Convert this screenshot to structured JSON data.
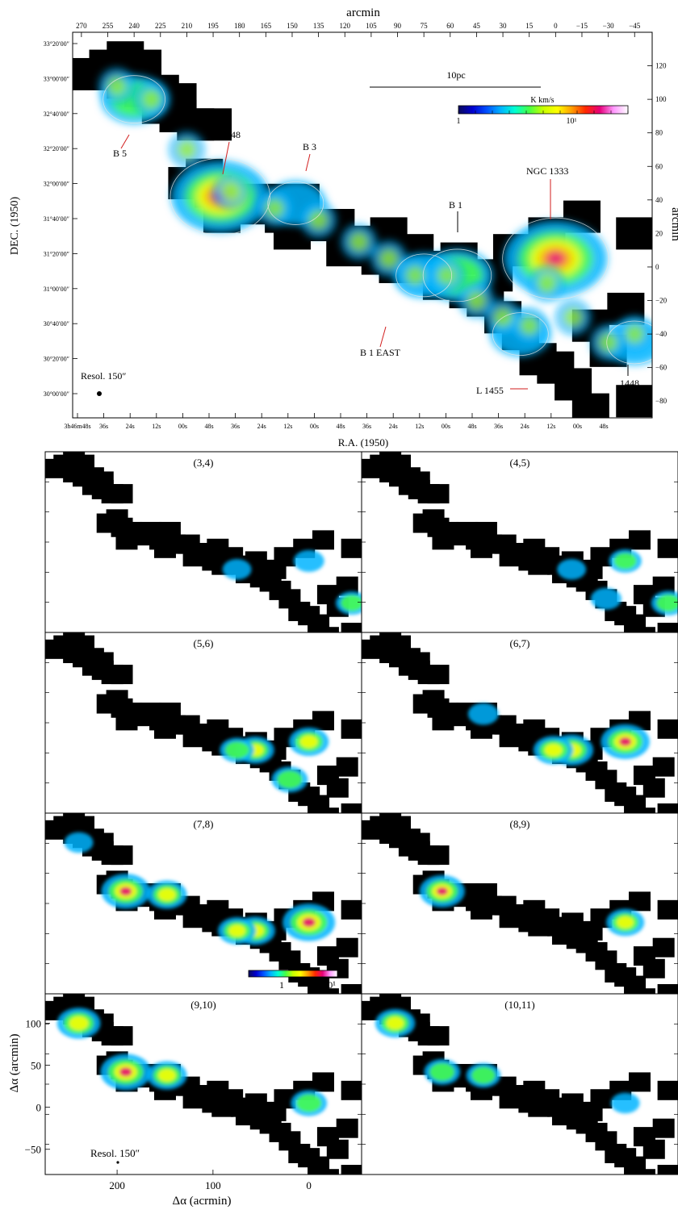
{
  "colors": {
    "colormap": [
      "#000000",
      "#0a0a5a",
      "#0000d0",
      "#0050ff",
      "#00b4ff",
      "#00ffd2",
      "#46ff46",
      "#c8ff00",
      "#ffff00",
      "#ffa000",
      "#ff2800",
      "#e6007a",
      "#ff9aff",
      "#ffffff"
    ],
    "panel_bg": "#ffffff",
    "map_bg": "#000000",
    "contour": "#e8e8e8",
    "pointer": "#d21e1e",
    "frame": "#000000"
  },
  "top_map": {
    "top_axis_label": "arcmin",
    "right_axis_label": "arcmin",
    "left_axis_label": "DEC. (1950)",
    "bottom_axis_label": "R.A. (1950)",
    "top_ticks": [
      "270",
      "255",
      "240",
      "225",
      "210",
      "195",
      "180",
      "165",
      "150",
      "135",
      "120",
      "105",
      "90",
      "75",
      "60",
      "45",
      "30",
      "15",
      "0",
      "−15",
      "−30",
      "−45"
    ],
    "right_ticks": [
      "120",
      "100",
      "80",
      "60",
      "40",
      "20",
      "0",
      "−20",
      "−40",
      "−60",
      "−80"
    ],
    "dec_ticks": [
      "33°20′00″",
      "33°00′00″",
      "32°40′00″",
      "32°20′00″",
      "32°00′00″",
      "31°40′00″",
      "31°20′00″",
      "31°00′00″",
      "30°40′00″",
      "30°20′00″",
      "30°00′00″"
    ],
    "ra_ticks": [
      "3h46m48s",
      "36s",
      "24s",
      "12s",
      "00s",
      "48s",
      "36s",
      "24s",
      "12s",
      "00s",
      "48s",
      "36s",
      "24s",
      "12s",
      "00s",
      "48s",
      "36s",
      "24s",
      "12s",
      "00s",
      "48s"
    ],
    "scale_bar_label": "10pc",
    "colorbar_title": "K km/s",
    "colorbar_min_label": "1",
    "colorbar_max_label": "10¹",
    "resolution_label": "Resol. 150″",
    "labels": {
      "b5": "B 5",
      "ic348": "IC 348",
      "b3": "B 3",
      "b1": "B 1",
      "ngc1333": "NGC 1333",
      "b1east": "B 1 EAST",
      "l1455": "L 1455",
      "l1448": "1448"
    }
  },
  "lower_axes": {
    "ylabel": "Δα (arcmin)",
    "xlabel": "Δα (acrmin)",
    "y_ticks": [
      "100",
      "50",
      "0",
      "−50"
    ],
    "x_ticks": [
      "200",
      "100",
      "0"
    ],
    "colorbar_min_label": "1",
    "colorbar_max_label": "10¹",
    "resolution_label": "Resol. 150″"
  },
  "panels": [
    {
      "title": "(3,4)"
    },
    {
      "title": "(4,5)"
    },
    {
      "title": "(5,6)"
    },
    {
      "title": "(6,7)"
    },
    {
      "title": "(7,8)"
    },
    {
      "title": "(8,9)"
    },
    {
      "title": "(9,10)"
    },
    {
      "title": "(10,11)"
    }
  ],
  "chart_data": {
    "type": "heatmap",
    "title": "",
    "value_label": "K km/s",
    "colorbar_range": [
      1,
      10
    ],
    "x_axis": {
      "label": "arcmin",
      "range": [
        275,
        -55
      ]
    },
    "y_axis": {
      "label": "arcmin",
      "range": [
        -90,
        140
      ]
    },
    "panel_ranges": {
      "x": [
        275,
        -55
      ],
      "y": [
        -80,
        135
      ]
    },
    "map_cells": [
      [
        245,
        125
      ],
      [
        235,
        120
      ],
      [
        255,
        120
      ],
      [
        265,
        115
      ],
      [
        245,
        110
      ],
      [
        235,
        105
      ],
      [
        225,
        105
      ],
      [
        215,
        100
      ],
      [
        225,
        95
      ],
      [
        215,
        90
      ],
      [
        205,
        85
      ],
      [
        195,
        85
      ],
      [
        200,
        55
      ],
      [
        210,
        50
      ],
      [
        195,
        45
      ],
      [
        185,
        40
      ],
      [
        190,
        30
      ],
      [
        175,
        35
      ],
      [
        165,
        40
      ],
      [
        155,
        30
      ],
      [
        145,
        40
      ],
      [
        150,
        20
      ],
      [
        140,
        25
      ],
      [
        125,
        25
      ],
      [
        120,
        10
      ],
      [
        110,
        15
      ],
      [
        95,
        20
      ],
      [
        100,
        5
      ],
      [
        90,
        0
      ],
      [
        80,
        10
      ],
      [
        70,
        0
      ],
      [
        65,
        -10
      ],
      [
        55,
        5
      ],
      [
        50,
        -15
      ],
      [
        40,
        -20
      ],
      [
        35,
        -5
      ],
      [
        30,
        -30
      ],
      [
        25,
        10
      ],
      [
        20,
        -40
      ],
      [
        10,
        -55
      ],
      [
        5,
        20
      ],
      [
        0,
        -60
      ],
      [
        -10,
        -70
      ],
      [
        -15,
        30
      ],
      [
        -20,
        -35
      ],
      [
        -30,
        -50
      ],
      [
        -40,
        -25
      ],
      [
        -45,
        20
      ],
      [
        -45,
        -80
      ],
      [
        -20,
        -85
      ]
    ],
    "emission_sources": [
      {
        "name": "B 5",
        "x": 240,
        "y": 100,
        "peak": 6
      },
      {
        "name": "IC 348",
        "x": 191,
        "y": 42,
        "peak": 12
      },
      {
        "name": "B 3",
        "x": 148,
        "y": 38,
        "peak": 5
      },
      {
        "name": "B 1",
        "x": 56,
        "y": -5,
        "peak": 7
      },
      {
        "name": "B 1 EAST",
        "x": 75,
        "y": -5,
        "peak": 5
      },
      {
        "name": "NGC 1333",
        "x": 0,
        "y": 5,
        "peak": 13
      },
      {
        "name": "L 1455",
        "x": 20,
        "y": -40,
        "peak": 5
      },
      {
        "name": "L 1448",
        "x": -45,
        "y": -45,
        "peak": 5
      }
    ],
    "velocity_channels": [
      "(3,4)",
      "(4,5)",
      "(5,6)",
      "(6,7)",
      "(7,8)",
      "(8,9)",
      "(9,10)",
      "(10,11)"
    ]
  }
}
